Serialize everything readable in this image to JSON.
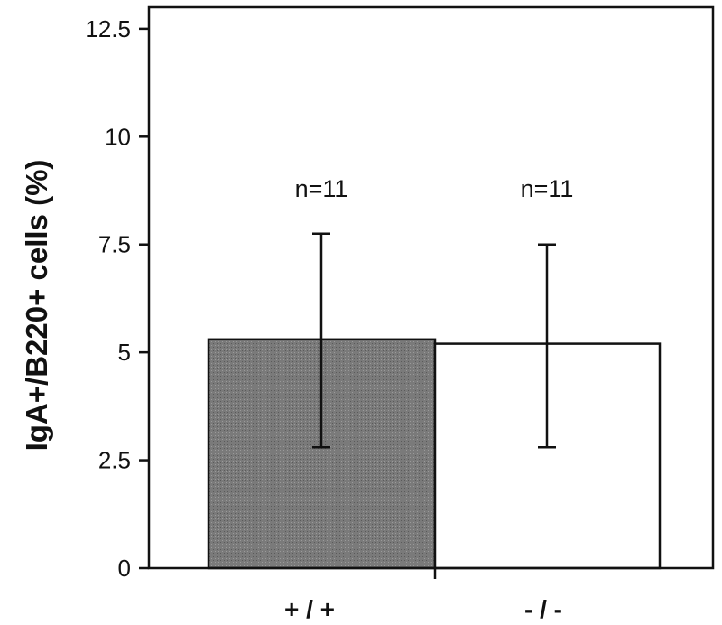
{
  "chart_data": {
    "type": "bar",
    "categories": [
      "+ / +",
      "- / -"
    ],
    "values": [
      5.3,
      5.2
    ],
    "error_upper": [
      7.75,
      7.5
    ],
    "error_lower": [
      2.8,
      2.8
    ],
    "annotations": [
      "n=11",
      "n=11"
    ],
    "bar_fills": [
      "#7a7a7a",
      "#ffffff"
    ],
    "title": "",
    "xlabel": "",
    "ylabel": "IgA+/B220+ cells (%)",
    "ylim": [
      0,
      13
    ],
    "yticks": [
      "0",
      "2.5",
      "5",
      "7.5",
      "10",
      "12.5"
    ],
    "ytick_values": [
      0,
      2.5,
      5,
      7.5,
      10,
      12.5
    ],
    "grid": false,
    "legend": "none"
  }
}
